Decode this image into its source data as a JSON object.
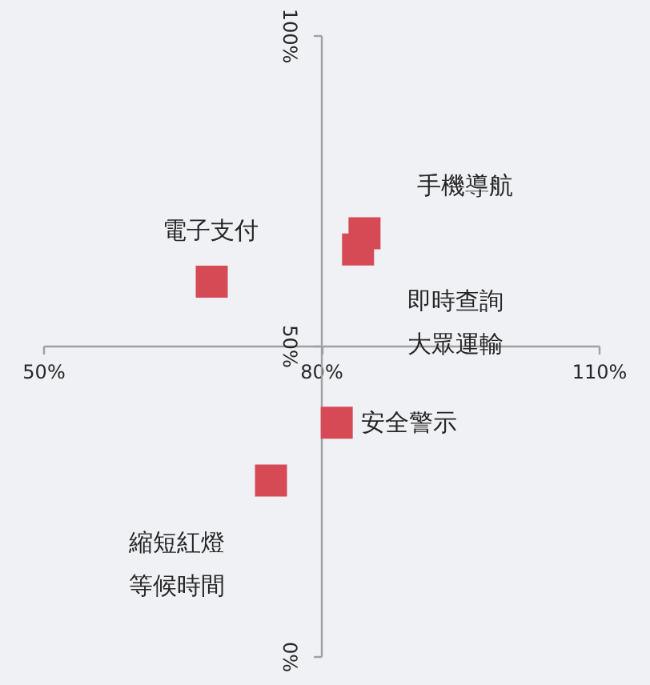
{
  "chart_data": {
    "type": "scatter",
    "x": [
      68.2,
      84.7,
      84.0,
      81.7,
      74.6
    ],
    "values": [
      60.3,
      68.1,
      65.5,
      37.6,
      28.3
    ],
    "color": "#d64a55",
    "marker": "square",
    "xlim": [
      50,
      110
    ],
    "ylim": [
      0,
      100
    ],
    "xticks": [
      {
        "value": 50,
        "label": "50%"
      },
      {
        "value": 80,
        "label": "80%"
      },
      {
        "value": 110,
        "label": "110%"
      }
    ],
    "yticks": [
      {
        "value": 0,
        "label": "0%"
      },
      {
        "value": 50,
        "label": "50%"
      },
      {
        "value": 100,
        "label": "100%"
      }
    ],
    "annotations": [
      {
        "text": "電子支付",
        "x": 68.2,
        "y": 60.3
      },
      {
        "text": "手機導航",
        "x": 84.7,
        "y": 68.1
      },
      {
        "text": "即時查詢大眾運輸",
        "x": 84.0,
        "y": 65.5
      },
      {
        "text": "安全警示",
        "x": 81.7,
        "y": 37.6
      },
      {
        "text": "縮短紅燈等候時間",
        "x": 74.6,
        "y": 28.3
      }
    ]
  }
}
